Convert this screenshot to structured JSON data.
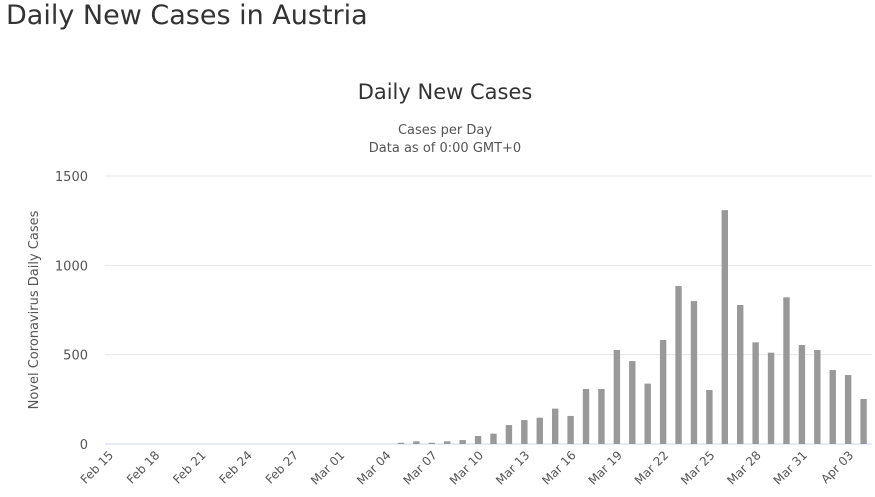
{
  "page_title": "Daily New Cases in Austria",
  "chart_data": {
    "type": "bar",
    "title": "Daily New Cases",
    "subtitle_lines": [
      "Cases per Day",
      "Data as of 0:00 GMT+0"
    ],
    "xlabel": "",
    "ylabel": "Novel Coronavirus Daily Cases",
    "ylim": [
      0,
      1500
    ],
    "yticks": [
      0,
      500,
      1000,
      1500
    ],
    "grid": true,
    "bar_color": "#999999",
    "categories": [
      "Feb 15",
      "Feb 16",
      "Feb 17",
      "Feb 18",
      "Feb 19",
      "Feb 20",
      "Feb 21",
      "Feb 22",
      "Feb 23",
      "Feb 24",
      "Feb 25",
      "Feb 26",
      "Feb 27",
      "Feb 28",
      "Feb 29",
      "Mar 01",
      "Mar 02",
      "Mar 03",
      "Mar 04",
      "Mar 05",
      "Mar 06",
      "Mar 07",
      "Mar 08",
      "Mar 09",
      "Mar 10",
      "Mar 11",
      "Mar 12",
      "Mar 13",
      "Mar 14",
      "Mar 15",
      "Mar 16",
      "Mar 17",
      "Mar 18",
      "Mar 19",
      "Mar 20",
      "Mar 21",
      "Mar 22",
      "Mar 23",
      "Mar 24",
      "Mar 25",
      "Mar 26",
      "Mar 27",
      "Mar 28",
      "Mar 29",
      "Mar 30",
      "Mar 31",
      "Apr 01",
      "Apr 02",
      "Apr 03",
      "Apr 04"
    ],
    "values": [
      0,
      0,
      0,
      0,
      0,
      0,
      0,
      0,
      0,
      0,
      0,
      0,
      0,
      0,
      0,
      0,
      0,
      0,
      0,
      7,
      15,
      7,
      15,
      22,
      45,
      58,
      106,
      134,
      147,
      198,
      157,
      308,
      308,
      526,
      464,
      338,
      582,
      884,
      800,
      302,
      1309,
      778,
      569,
      511,
      821,
      554,
      526,
      414,
      386,
      252
    ],
    "xtick_every": 3
  }
}
